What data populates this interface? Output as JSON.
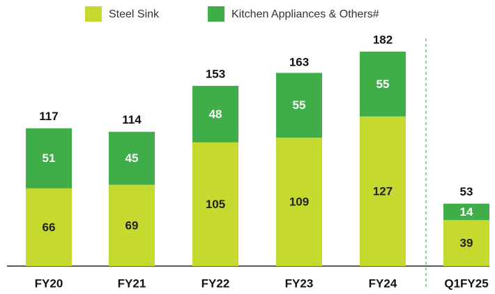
{
  "chart_data": {
    "type": "stacked_bar",
    "categories": [
      "FY20",
      "FY21",
      "FY22",
      "FY23",
      "FY24",
      "Q1FY25"
    ],
    "series": [
      {
        "name": "Steel Sink",
        "color": "#c5d92e",
        "values": [
          66,
          69,
          105,
          109,
          127,
          39
        ]
      },
      {
        "name": "Kitchen Appliances & Others#",
        "color": "#3fae49",
        "values": [
          51,
          45,
          48,
          55,
          55,
          14
        ]
      }
    ],
    "totals": [
      117,
      114,
      153,
      163,
      182,
      53
    ],
    "legend": "top"
  }
}
